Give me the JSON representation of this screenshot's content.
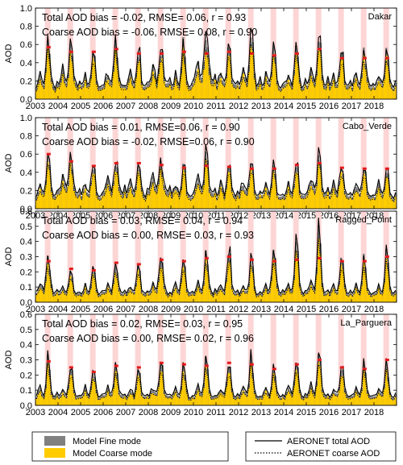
{
  "figure": {
    "legend_left": [
      {
        "label": "Model Fine mode",
        "color": "#808080"
      },
      {
        "label": "Model Coarse mode",
        "color": "#ffcc00"
      }
    ],
    "legend_right": [
      {
        "label": "AERONET total AOD",
        "style": "solid"
      },
      {
        "label": "AERONET coarse AOD",
        "style": "dotted"
      }
    ]
  },
  "chart_data": [
    {
      "type": "bar",
      "site": "Dakar",
      "ylabel": "AOD",
      "ylim": [
        0,
        1.0
      ],
      "yticks": [
        "0.0",
        "0.2",
        "0.4",
        "0.6",
        "0.8",
        "1.0"
      ],
      "xticks": [
        "2003",
        "2004",
        "2005",
        "2006",
        "2007",
        "2008",
        "2009",
        "2010",
        "2011",
        "2012",
        "2013",
        "2014",
        "2015",
        "2016",
        "2017",
        "2018"
      ],
      "stat_total": "Total AOD bias = -0.02, RMSE= 0.06, r = 0.93",
      "stat_coarse": "Coarse AOD bias = -0.06, RMSE= 0.08, r = 0.90",
      "summer_peak_total": [
        0.62,
        0.55,
        0.58,
        0.65,
        0.55,
        0.56,
        0.62,
        0.75,
        0.62,
        0.68,
        0.56,
        0.6,
        0.68,
        0.6,
        0.54,
        0.54
      ],
      "summer_peak_coarse": [
        0.55,
        0.48,
        0.5,
        0.55,
        0.47,
        0.48,
        0.52,
        0.6,
        0.52,
        0.58,
        0.48,
        0.52,
        0.58,
        0.5,
        0.46,
        0.46
      ],
      "winter_peak": [
        0.3,
        0.35,
        0.28,
        0.32,
        0.3,
        0.38,
        0.3,
        0.45,
        0.33,
        0.35,
        0.3,
        0.32,
        0.36,
        0.3,
        0.3,
        0.3
      ],
      "red_markers": [
        0.57,
        0.52,
        0.52,
        0.55,
        0.5,
        0.5,
        0.52,
        0.5,
        0.52,
        0.5,
        0.48,
        0.5,
        0.55,
        0.45,
        0.45,
        0.45
      ]
    },
    {
      "type": "bar",
      "site": "Cabo_Verde",
      "ylabel": "AOD",
      "ylim": [
        0,
        1.0
      ],
      "yticks": [
        "0.0",
        "0.2",
        "0.4",
        "0.6",
        "0.8",
        "1.0"
      ],
      "xticks": [
        "2003",
        "2004",
        "2005",
        "2006",
        "2007",
        "2008",
        "2009",
        "2010",
        "2011",
        "2012",
        "2013",
        "2014",
        "2015",
        "2016",
        "2017",
        "2018"
      ],
      "stat_total": "Total AOD bias = 0.01, RMSE=0.06, r = 0.90",
      "stat_coarse": "Coarse AOD bias = -0.02, RMSE=0.06, r = 0.90",
      "summer_peak_total": [
        0.58,
        0.52,
        0.52,
        0.55,
        0.5,
        0.52,
        0.5,
        0.6,
        0.5,
        0.55,
        0.48,
        0.52,
        0.6,
        0.5,
        0.45,
        0.45
      ],
      "summer_peak_coarse": [
        0.52,
        0.46,
        0.46,
        0.48,
        0.44,
        0.45,
        0.44,
        0.52,
        0.44,
        0.48,
        0.42,
        0.45,
        0.52,
        0.44,
        0.4,
        0.4
      ],
      "winter_peak": [
        0.32,
        0.4,
        0.3,
        0.38,
        0.32,
        0.4,
        0.3,
        0.38,
        0.3,
        0.33,
        0.3,
        0.32,
        0.38,
        0.3,
        0.3,
        0.28
      ],
      "red_markers": [
        0.6,
        0.52,
        0.47,
        0.5,
        0.5,
        0.48,
        0.45,
        0.47,
        0.46,
        0.44,
        0.44,
        0.48,
        0.5,
        0.45,
        0.44,
        0.44
      ]
    },
    {
      "type": "bar",
      "site": "Ragged_Point",
      "ylabel": "AOD",
      "ylim": [
        0,
        0.6
      ],
      "yticks": [
        "0.0",
        "0.1",
        "0.2",
        "0.3",
        "0.4",
        "0.5",
        "0.6"
      ],
      "xticks": [
        "2003",
        "2004",
        "2005",
        "2006",
        "2007",
        "2008",
        "2009",
        "2010",
        "2011",
        "2012",
        "2013",
        "2014",
        "2015",
        "2016",
        "2017",
        "2018"
      ],
      "stat_total": "Total AOD bias  = 0.03, RMSE= 0.04, r = 0.94",
      "stat_coarse": "Coarse AOD bias = 0.00, RMSE= 0.03, r = 0.93",
      "summer_peak_total": [
        0.3,
        0.24,
        0.22,
        0.28,
        0.24,
        0.3,
        0.3,
        0.32,
        0.36,
        0.3,
        0.35,
        0.38,
        0.46,
        0.32,
        0.3,
        0.34
      ],
      "summer_peak_coarse": [
        0.25,
        0.2,
        0.18,
        0.23,
        0.2,
        0.25,
        0.25,
        0.27,
        0.3,
        0.25,
        0.29,
        0.32,
        0.38,
        0.27,
        0.25,
        0.28
      ],
      "winter_peak": [
        0.14,
        0.12,
        0.12,
        0.13,
        0.12,
        0.13,
        0.12,
        0.13,
        0.13,
        0.12,
        0.12,
        0.13,
        0.14,
        0.12,
        0.12,
        0.12
      ],
      "red_markers": [
        0.27,
        0.22,
        0.21,
        0.26,
        0.25,
        0.28,
        0.27,
        0.29,
        0.3,
        0.28,
        0.27,
        0.28,
        0.29,
        0.27,
        0.27,
        0.3
      ]
    },
    {
      "type": "bar",
      "site": "La_Parguera",
      "ylabel": "AOD",
      "ylim": [
        0,
        0.6
      ],
      "yticks": [
        "0.0",
        "0.1",
        "0.2",
        "0.3",
        "0.4",
        "0.5",
        "0.6"
      ],
      "xticks": [
        "2003",
        "2004",
        "2005",
        "2006",
        "2007",
        "2008",
        "2009",
        "2010",
        "2011",
        "2012",
        "2013",
        "2014",
        "2015",
        "2016",
        "2017",
        "2018"
      ],
      "stat_total": "Total AOD bias = 0.02, RMSE= 0.03, r = 0.95",
      "stat_coarse": "Coarse AOD bias = 0.00, RMSE= 0.02, r = 0.96",
      "summer_peak_total": [
        0.3,
        0.26,
        0.24,
        0.28,
        0.26,
        0.3,
        0.28,
        0.3,
        0.3,
        0.3,
        0.28,
        0.3,
        0.34,
        0.28,
        0.26,
        0.26
      ],
      "summer_peak_coarse": [
        0.25,
        0.22,
        0.2,
        0.23,
        0.22,
        0.25,
        0.23,
        0.25,
        0.25,
        0.25,
        0.23,
        0.25,
        0.29,
        0.23,
        0.22,
        0.22
      ],
      "winter_peak": [
        0.13,
        0.12,
        0.12,
        0.13,
        0.12,
        0.13,
        0.12,
        0.13,
        0.13,
        0.12,
        0.12,
        0.13,
        0.14,
        0.12,
        0.12,
        0.12
      ],
      "red_markers": [
        0.29,
        0.25,
        0.22,
        0.26,
        0.25,
        0.28,
        0.27,
        0.26,
        0.28,
        0.27,
        0.24,
        0.27,
        0.3,
        0.25,
        0.24,
        0.3
      ]
    }
  ]
}
